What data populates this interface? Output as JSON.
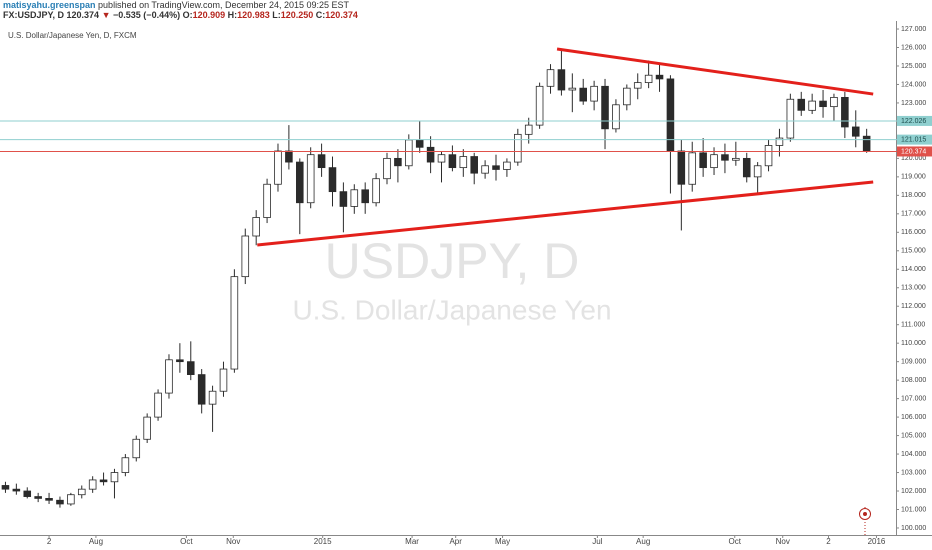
{
  "header": {
    "author": "matisyahu.greenspan",
    "published": "published on TradingView.com, December 24, 2015 09:25 EST",
    "symbol": "FX:USDJPY, D",
    "last": "120.374",
    "arrow": "▼",
    "change": "−0.535 (−0.44%)",
    "o_label": "O:",
    "o": "120.909",
    "h_label": "H:",
    "h": "120.983",
    "l_label": "L:",
    "l": "120.250",
    "c_label": "C:",
    "c": "120.374"
  },
  "chart_data": {
    "type": "candlestick",
    "title": "U.S. Dollar/Japanese Yen, D, FXCM",
    "watermark": [
      "USDJPY, D",
      "U.S. Dollar/Japanese Yen"
    ],
    "up_color": "#ffffff",
    "down_color": "#2b2b2b",
    "wick_color": "#2b2b2b",
    "x": [
      0,
      1,
      2,
      3,
      4,
      5,
      6,
      7,
      8,
      9,
      10,
      11,
      12,
      13,
      14,
      15,
      16,
      17,
      18,
      19,
      20,
      21,
      22,
      23,
      24,
      25,
      26,
      27,
      28,
      29,
      30,
      31,
      32,
      33,
      34,
      35,
      36,
      37,
      38,
      39,
      40,
      41,
      42,
      43,
      44,
      45,
      46,
      47,
      48,
      49,
      50,
      51,
      52,
      53,
      54,
      55,
      56,
      57,
      58,
      59,
      60,
      61,
      62,
      63,
      64,
      65,
      66,
      67,
      68,
      69,
      70,
      71,
      72,
      73,
      74,
      75,
      76,
      77,
      78,
      79
    ],
    "open": [
      102.3,
      102.1,
      102.0,
      101.7,
      101.6,
      101.5,
      101.3,
      101.8,
      102.1,
      102.6,
      102.5,
      103.0,
      103.8,
      104.8,
      106.0,
      107.3,
      109.1,
      109.0,
      108.3,
      106.7,
      107.4,
      108.6,
      113.6,
      115.8,
      116.8,
      118.6,
      120.4,
      119.8,
      117.6,
      120.2,
      119.5,
      118.2,
      117.4,
      118.3,
      117.6,
      118.9,
      120.0,
      119.6,
      121.0,
      120.6,
      119.8,
      120.2,
      119.5,
      120.1,
      119.2,
      119.6,
      119.4,
      119.8,
      121.3,
      121.8,
      123.9,
      124.8,
      123.7,
      123.8,
      123.1,
      123.9,
      121.6,
      122.9,
      123.8,
      124.1,
      124.5,
      124.3,
      120.4,
      118.6,
      120.3,
      119.5,
      120.2,
      119.9,
      120.0,
      119.0,
      119.6,
      120.7,
      121.1,
      123.2,
      122.6,
      123.1,
      122.8,
      123.3,
      121.7,
      121.2
    ],
    "high": [
      102.5,
      102.4,
      102.2,
      101.9,
      101.9,
      101.7,
      101.9,
      102.3,
      102.8,
      103.0,
      103.2,
      104.0,
      105.0,
      106.2,
      107.5,
      109.4,
      110.0,
      110.1,
      108.6,
      107.7,
      109.0,
      114.0,
      116.2,
      117.2,
      118.9,
      120.8,
      121.8,
      120.0,
      120.6,
      120.8,
      120.1,
      118.7,
      118.6,
      118.7,
      119.2,
      120.3,
      120.5,
      121.3,
      122.0,
      121.2,
      120.4,
      120.7,
      120.5,
      120.3,
      119.9,
      120.2,
      120.0,
      121.6,
      122.2,
      124.1,
      125.1,
      125.9,
      124.6,
      124.3,
      124.2,
      124.3,
      123.2,
      124.0,
      124.6,
      125.3,
      125.1,
      124.5,
      121.0,
      120.9,
      121.1,
      120.6,
      120.8,
      120.9,
      120.3,
      119.8,
      121.0,
      121.6,
      123.5,
      123.6,
      123.5,
      123.7,
      123.5,
      123.6,
      122.6,
      121.6
    ],
    "low": [
      101.9,
      101.8,
      101.6,
      101.4,
      101.3,
      101.1,
      101.2,
      101.6,
      101.9,
      102.3,
      101.6,
      102.8,
      103.6,
      104.6,
      105.8,
      107.0,
      108.4,
      108.0,
      106.2,
      105.2,
      107.1,
      108.4,
      113.2,
      115.3,
      116.5,
      118.2,
      119.4,
      115.9,
      117.3,
      119.0,
      117.4,
      116.0,
      117.0,
      117.0,
      117.4,
      118.6,
      118.7,
      119.4,
      120.3,
      119.2,
      118.7,
      119.3,
      119.0,
      118.6,
      118.9,
      118.8,
      119.0,
      119.6,
      120.8,
      121.6,
      123.5,
      123.4,
      122.5,
      122.9,
      122.6,
      120.5,
      121.4,
      122.6,
      123.2,
      123.8,
      123.6,
      118.1,
      116.1,
      118.2,
      119.0,
      119.1,
      119.2,
      119.6,
      118.7,
      118.1,
      119.3,
      120.1,
      120.9,
      122.3,
      122.4,
      122.2,
      122.0,
      121.1,
      120.6,
      120.3
    ],
    "close": [
      102.1,
      102.0,
      101.7,
      101.6,
      101.5,
      101.3,
      101.8,
      102.1,
      102.6,
      102.5,
      103.0,
      103.8,
      104.8,
      106.0,
      107.3,
      109.1,
      109.0,
      108.3,
      106.7,
      107.4,
      108.6,
      113.6,
      115.8,
      116.8,
      118.6,
      120.4,
      119.8,
      117.6,
      120.2,
      119.5,
      118.2,
      117.4,
      118.3,
      117.6,
      118.9,
      120.0,
      119.6,
      121.0,
      120.6,
      119.8,
      120.2,
      119.5,
      120.1,
      119.2,
      119.6,
      119.4,
      119.8,
      121.3,
      121.8,
      123.9,
      124.8,
      123.7,
      123.8,
      123.1,
      123.9,
      121.6,
      122.9,
      123.8,
      124.1,
      124.5,
      124.3,
      120.4,
      118.6,
      120.3,
      119.5,
      120.2,
      119.9,
      120.0,
      119.0,
      119.6,
      120.7,
      121.1,
      123.2,
      122.6,
      123.1,
      122.8,
      123.3,
      121.7,
      121.2,
      120.374
    ],
    "xlim": [
      -0.5,
      81.6
    ],
    "ylim": [
      99.62,
      127.38
    ],
    "xticks": [
      {
        "value": 4.0,
        "label": "2"
      },
      {
        "value": 8.3,
        "label": "Aug"
      },
      {
        "value": 16.6,
        "label": "Oct"
      },
      {
        "value": 20.9,
        "label": "Nov"
      },
      {
        "value": 29.1,
        "label": "2015"
      },
      {
        "value": 37.3,
        "label": "Mar"
      },
      {
        "value": 41.3,
        "label": "Apr"
      },
      {
        "value": 45.6,
        "label": "May"
      },
      {
        "value": 54.3,
        "label": "Jul"
      },
      {
        "value": 58.5,
        "label": "Aug"
      },
      {
        "value": 66.9,
        "label": "Oct"
      },
      {
        "value": 71.3,
        "label": "Nov"
      },
      {
        "value": 75.5,
        "label": "2"
      },
      {
        "value": 79.9,
        "label": "2016"
      }
    ],
    "yticks": [
      {
        "value": 100,
        "label": "100.000"
      },
      {
        "value": 101,
        "label": "101.000"
      },
      {
        "value": 102,
        "label": "102.000"
      },
      {
        "value": 103,
        "label": "103.000"
      },
      {
        "value": 104,
        "label": "104.000"
      },
      {
        "value": 105,
        "label": "105.000"
      },
      {
        "value": 106,
        "label": "106.000"
      },
      {
        "value": 107,
        "label": "107.000"
      },
      {
        "value": 108,
        "label": "108.000"
      },
      {
        "value": 109,
        "label": "109.000"
      },
      {
        "value": 110,
        "label": "110.000"
      },
      {
        "value": 111,
        "label": "111.000"
      },
      {
        "value": 112,
        "label": "112.000"
      },
      {
        "value": 113,
        "label": "113.000"
      },
      {
        "value": 114,
        "label": "114.000"
      },
      {
        "value": 115,
        "label": "115.000"
      },
      {
        "value": 116,
        "label": "116.000"
      },
      {
        "value": 117,
        "label": "117.000"
      },
      {
        "value": 118,
        "label": "118.000"
      },
      {
        "value": 119,
        "label": "119.000"
      },
      {
        "value": 120,
        "label": "120.000"
      },
      {
        "value": 121,
        "label": "121.000"
      },
      {
        "value": 122,
        "label": "122.000"
      },
      {
        "value": 123,
        "label": "123.000"
      },
      {
        "value": 124,
        "label": "124.000"
      },
      {
        "value": 125,
        "label": "125.000"
      },
      {
        "value": 126,
        "label": "126.000"
      },
      {
        "value": 127,
        "label": "127.000"
      }
    ],
    "price_lines": [
      {
        "value": 122.026,
        "color": "#8fcfcf",
        "text_color": "#1d4d4d"
      },
      {
        "value": 121.015,
        "color": "#8fcfcf",
        "text_color": "#1d4d4d"
      },
      {
        "value": 120.374,
        "color": "#e0514a",
        "text_color": "#ffffff"
      }
    ],
    "trend_lines": [
      {
        "x": [
          50.6,
          79.6
        ],
        "y": [
          125.92,
          123.48
        ],
        "color": "#e3201b"
      },
      {
        "x": [
          23.1,
          79.6
        ],
        "y": [
          115.31,
          118.72
        ],
        "color": "#e3201b"
      }
    ]
  }
}
